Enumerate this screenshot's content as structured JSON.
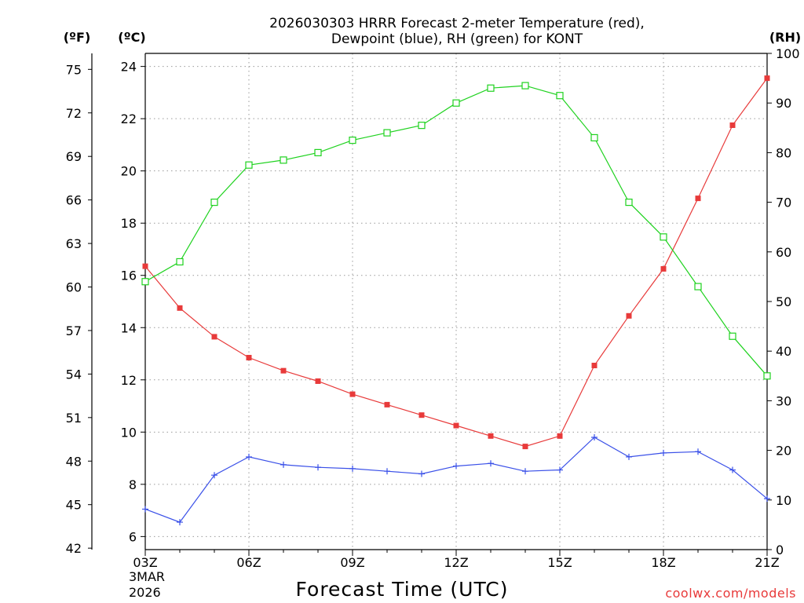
{
  "chart_data": {
    "type": "line",
    "title_line1": "2026030303 HRRR Forecast 2-meter Temperature (red),",
    "title_line2": "Dewpoint (blue), RH (green) for KONT",
    "xlabel": "Forecast Time (UTC)",
    "date_label_1": "3MAR",
    "date_label_2": "2026",
    "credit": "coolwx.com/models",
    "left_axis_unit": "(ºF)",
    "celsius_axis_unit": "(ºC)",
    "right_axis_unit": "(RH)",
    "x_hours": [
      3,
      4,
      5,
      6,
      7,
      8,
      9,
      10,
      11,
      12,
      13,
      14,
      15,
      16,
      17,
      18,
      19,
      20,
      21
    ],
    "x_tick_hours": [
      3,
      6,
      9,
      12,
      15,
      18,
      21
    ],
    "x_tick_labels": [
      "03Z",
      "06Z",
      "09Z",
      "12Z",
      "15Z",
      "18Z",
      "21Z"
    ],
    "fahrenheit_ticks": [
      "42",
      "45",
      "48",
      "51",
      "54",
      "57",
      "60",
      "63",
      "66",
      "69",
      "72",
      "75"
    ],
    "celsius_ticks": [
      "6",
      "8",
      "10",
      "12",
      "14",
      "16",
      "18",
      "20",
      "22",
      "24"
    ],
    "rh_ticks": [
      "0",
      "10",
      "20",
      "30",
      "40",
      "50",
      "60",
      "70",
      "80",
      "90",
      "100"
    ],
    "celsius_range": [
      5.5,
      24.5
    ],
    "rh_range": [
      0,
      100
    ],
    "series": [
      {
        "name": "Temperature",
        "units": "C",
        "color": "#e83a3a",
        "marker": "filled-square",
        "values": [
          16.35,
          14.75,
          13.65,
          12.85,
          12.35,
          11.95,
          11.45,
          11.05,
          10.65,
          10.25,
          9.85,
          9.45,
          9.85,
          12.55,
          14.45,
          16.25,
          18.95,
          21.75,
          23.55
        ]
      },
      {
        "name": "Dewpoint",
        "units": "C",
        "color": "#3a50e8",
        "marker": "plus",
        "values": [
          7.05,
          6.55,
          8.35,
          9.05,
          8.75,
          8.65,
          8.6,
          8.5,
          8.4,
          8.7,
          8.8,
          8.5,
          8.55,
          9.8,
          9.05,
          9.2,
          9.25,
          8.55,
          7.45
        ]
      },
      {
        "name": "RH",
        "units": "%",
        "color": "#1fd21f",
        "marker": "open-square",
        "values": [
          54,
          58,
          70,
          77.5,
          78.5,
          80,
          82.5,
          84,
          85.5,
          90,
          93,
          93.5,
          91.5,
          83,
          70,
          63,
          53,
          43,
          35
        ]
      }
    ]
  }
}
